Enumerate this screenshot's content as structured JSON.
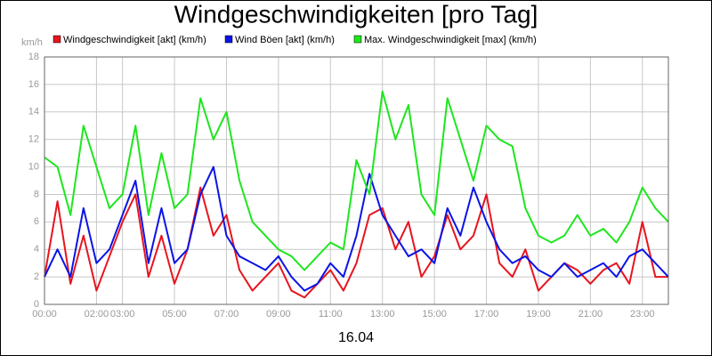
{
  "chart_data": {
    "type": "line",
    "title": "Windgeschwindigkeiten [pro Tag]",
    "y_unit": "km/h",
    "x_label": "16.04",
    "xlim": [
      0,
      24
    ],
    "ylim": [
      0,
      18
    ],
    "yticks": [
      0,
      2,
      4,
      6,
      8,
      10,
      12,
      14,
      16,
      18
    ],
    "xticks": [
      {
        "value": 0,
        "label": "00:00"
      },
      {
        "value": 2,
        "label": "02:00"
      },
      {
        "value": 3,
        "label": "03:00"
      },
      {
        "value": 5,
        "label": "05:00"
      },
      {
        "value": 7,
        "label": "07:00"
      },
      {
        "value": 9,
        "label": "09:00"
      },
      {
        "value": 11,
        "label": "11:00"
      },
      {
        "value": 13,
        "label": "13:00"
      },
      {
        "value": 15,
        "label": "15:00"
      },
      {
        "value": 17,
        "label": "17:00"
      },
      {
        "value": 19,
        "label": "19:00"
      },
      {
        "value": 21,
        "label": "21:00"
      },
      {
        "value": 23,
        "label": "23:00"
      }
    ],
    "grid": true,
    "x": [
      0,
      0.5,
      1,
      1.5,
      2,
      2.5,
      3,
      3.5,
      4,
      4.5,
      5,
      5.5,
      6,
      6.5,
      7,
      7.5,
      8,
      8.5,
      9,
      9.5,
      10,
      10.5,
      11,
      11.5,
      12,
      12.5,
      13,
      13.5,
      14,
      14.5,
      15,
      15.5,
      16,
      16.5,
      17,
      17.5,
      18,
      18.5,
      19,
      19.5,
      20,
      20.5,
      21,
      21.5,
      22,
      22.5,
      23,
      23.5,
      24
    ],
    "series": [
      {
        "name": "Windgeschwindigkeit [akt] (km/h)",
        "color": "#e8141e",
        "values": [
          2,
          7.5,
          1.5,
          5,
          1,
          3.5,
          6,
          8,
          2,
          5,
          1.5,
          4,
          8.5,
          5,
          6.5,
          2.5,
          1,
          2,
          3,
          1,
          0.5,
          1.5,
          2.5,
          1,
          3,
          6.5,
          7,
          4,
          6,
          2,
          3.5,
          6.5,
          4,
          5,
          8,
          3,
          2,
          4,
          1,
          2,
          3,
          2.5,
          1.5,
          2.5,
          3,
          1.5,
          6,
          2,
          2
        ]
      },
      {
        "name": "Wind Böen [akt] (km/h)",
        "color": "#0a14e6",
        "values": [
          2,
          4,
          2,
          7,
          3,
          4,
          6.5,
          9,
          3,
          7,
          3,
          4,
          8,
          10,
          5,
          3.5,
          3,
          2.5,
          3.5,
          2,
          1,
          1.5,
          3,
          2,
          5,
          9.5,
          6.5,
          5,
          3.5,
          4,
          3,
          7,
          5,
          8.5,
          6,
          4,
          3,
          3.5,
          2.5,
          2,
          3,
          2,
          2.5,
          3,
          2,
          3.5,
          4,
          3,
          2
        ]
      },
      {
        "name": "Max. Windgeschwindigkeit [max] (km/h)",
        "color": "#1ee61e",
        "values": [
          10.7,
          10,
          6.5,
          13,
          10,
          7,
          8,
          13,
          6.5,
          11,
          7,
          8,
          15,
          12,
          14,
          9,
          6,
          5,
          4,
          3.5,
          2.5,
          3.5,
          4.5,
          4,
          10.5,
          8,
          15.5,
          12,
          14.5,
          8,
          6.5,
          15,
          12,
          9,
          13,
          12,
          11.5,
          7,
          5,
          4.5,
          5,
          6.5,
          5,
          5.5,
          4.5,
          6,
          8.5,
          7,
          6
        ]
      }
    ]
  }
}
